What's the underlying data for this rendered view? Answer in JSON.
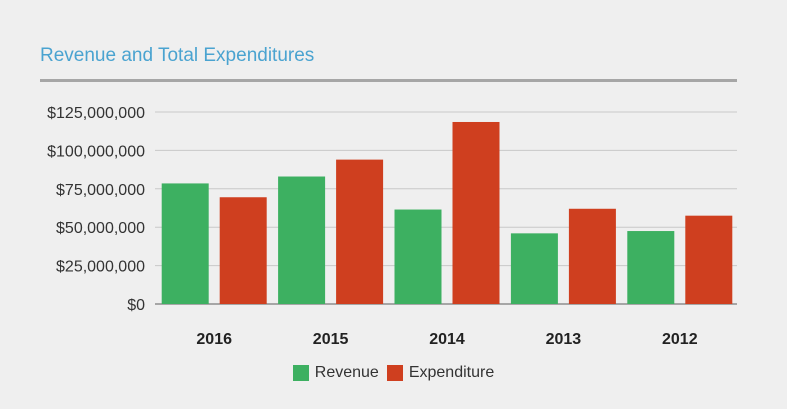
{
  "title": "Revenue and Total Expenditures",
  "colors": {
    "title": "#4aa3d0",
    "revenue": "#3db061",
    "expenditure": "#cf3f1f",
    "grid": "#c8c8c8",
    "axis": "#a6a6a6"
  },
  "chart_data": {
    "type": "bar",
    "title": "Revenue and Total Expenditures",
    "xlabel": "",
    "ylabel": "",
    "categories": [
      "2016",
      "2015",
      "2014",
      "2013",
      "2012"
    ],
    "series": [
      {
        "name": "Revenue",
        "values": [
          78500000,
          83000000,
          61500000,
          46000000,
          47500000
        ]
      },
      {
        "name": "Expenditure",
        "values": [
          69500000,
          94000000,
          118500000,
          62000000,
          57500000
        ]
      }
    ],
    "ylim": [
      0,
      125000000
    ],
    "yticks": [
      0,
      25000000,
      50000000,
      75000000,
      100000000,
      125000000
    ],
    "ytick_labels": [
      "$0",
      "$25,000,000",
      "$50,000,000",
      "$75,000,000",
      "$100,000,000",
      "$125,000,000"
    ],
    "grid": true,
    "legend": "bottom-center"
  },
  "legend": {
    "items": [
      "Revenue",
      "Expenditure"
    ]
  }
}
